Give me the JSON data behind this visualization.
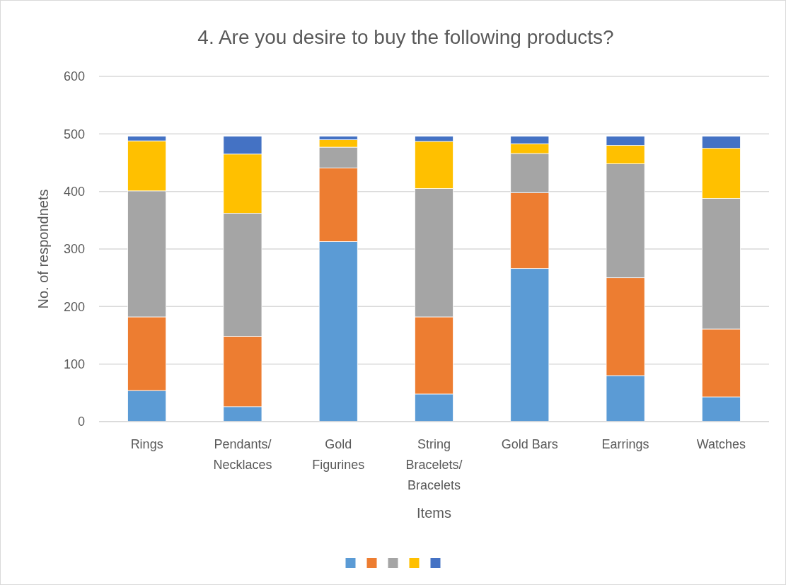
{
  "chart_data": {
    "type": "bar",
    "title": "4. Are you desire to buy the following products?",
    "xlabel": "Items",
    "ylabel": "No. of respondnets",
    "categories": [
      "Rings",
      "Pendants/ Necklaces",
      "Gold Figurines",
      "String Bracelets/ Bracelets",
      "Gold Bars",
      "Earrings",
      "Watches"
    ],
    "series": [
      {
        "color": "#5b9bd5",
        "values": [
          54,
          26,
          313,
          48,
          266,
          80,
          43
        ]
      },
      {
        "color": "#ed7d31",
        "values": [
          128,
          122,
          128,
          134,
          132,
          170,
          118
        ]
      },
      {
        "color": "#a5a5a5",
        "values": [
          219,
          214,
          36,
          223,
          68,
          198,
          227
        ]
      },
      {
        "color": "#ffc000",
        "values": [
          87,
          103,
          13,
          82,
          17,
          32,
          87
        ]
      },
      {
        "color": "#4472c4",
        "values": [
          8,
          31,
          6,
          9,
          13,
          16,
          21
        ]
      }
    ],
    "stacked": true,
    "ylim": [
      0,
      600
    ],
    "yticks": [
      0,
      100,
      200,
      300,
      400,
      500,
      600
    ],
    "grid": "y"
  }
}
